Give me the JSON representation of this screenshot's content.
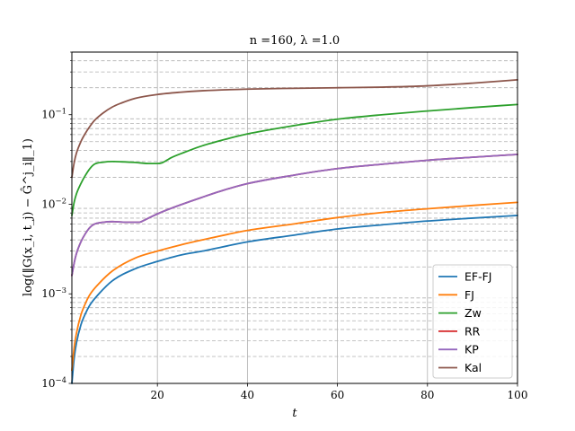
{
  "chart_data": {
    "type": "line",
    "title": "n =160, λ =1.0",
    "xlabel": "t",
    "ylabel": "log(‖G(x_i, t_j) − Ĝ^j_i‖_1)",
    "xlim": [
      1,
      100
    ],
    "ylim": [
      0.0001,
      0.5
    ],
    "yscale": "log",
    "xticks": [
      20,
      40,
      60,
      80,
      100
    ],
    "xtick_labels": [
      "20",
      "40",
      "60",
      "80",
      "100"
    ],
    "yticks": [
      0.0001,
      0.001,
      0.01,
      0.1
    ],
    "ytick_labels": [
      "10^-4",
      "10^-3",
      "10^-2",
      "10^-1"
    ],
    "grid": {
      "x": "major-solid",
      "y": "minor-dashed"
    },
    "legend_position": "lower-right",
    "series": [
      {
        "name": "EF-FJ",
        "color": "#1f77b4",
        "x": [
          1,
          1.5,
          2,
          3,
          4,
          5,
          7,
          10,
          15,
          20,
          25,
          30,
          40,
          50,
          60,
          70,
          80,
          90,
          100
        ],
        "y": [
          0.0001,
          0.00019,
          0.00028,
          0.00045,
          0.0006,
          0.00075,
          0.001,
          0.0014,
          0.0019,
          0.0023,
          0.0027,
          0.003,
          0.0038,
          0.0045,
          0.0053,
          0.0059,
          0.0065,
          0.007,
          0.0075
        ]
      },
      {
        "name": "FJ",
        "color": "#ff7f0e",
        "x": [
          1,
          1.5,
          2,
          3,
          4,
          5,
          7,
          10,
          15,
          20,
          25,
          30,
          40,
          50,
          60,
          70,
          80,
          90,
          100
        ],
        "y": [
          0.00014,
          0.00025,
          0.00036,
          0.00058,
          0.00078,
          0.00098,
          0.0013,
          0.0018,
          0.0025,
          0.003,
          0.0035,
          0.004,
          0.0051,
          0.006,
          0.0071,
          0.0081,
          0.0089,
          0.0097,
          0.0105
        ]
      },
      {
        "name": "Zw",
        "color": "#2ca02c",
        "x": [
          1,
          1.5,
          2,
          3,
          4,
          5,
          6,
          8,
          10,
          12,
          15,
          18,
          20,
          21,
          23,
          26,
          30,
          35,
          40,
          50,
          60,
          70,
          80,
          90,
          100
        ],
        "y": [
          0.0075,
          0.0105,
          0.013,
          0.017,
          0.021,
          0.025,
          0.028,
          0.0295,
          0.03,
          0.0298,
          0.0293,
          0.0285,
          0.0285,
          0.029,
          0.033,
          0.038,
          0.045,
          0.053,
          0.061,
          0.075,
          0.089,
          0.1,
          0.11,
          0.12,
          0.13
        ]
      },
      {
        "name": "RR",
        "color": "#d62728",
        "x": [
          1,
          1.5,
          2,
          3,
          4,
          5,
          6,
          8,
          10,
          13,
          16,
          17,
          18,
          20,
          22,
          25,
          30,
          35,
          40,
          50,
          60,
          70,
          80,
          90,
          100
        ],
        "y": [
          0.0016,
          0.0022,
          0.0028,
          0.0038,
          0.0047,
          0.0055,
          0.006,
          0.0063,
          0.0064,
          0.0063,
          0.0063,
          0.0066,
          0.007,
          0.0078,
          0.0086,
          0.0098,
          0.012,
          0.0145,
          0.017,
          0.021,
          0.025,
          0.028,
          0.031,
          0.0335,
          0.036
        ]
      },
      {
        "name": "KP",
        "color": "#9467bd",
        "x": [
          1,
          1.5,
          2,
          3,
          4,
          5,
          6,
          8,
          10,
          13,
          16,
          17,
          18,
          20,
          22,
          25,
          30,
          35,
          40,
          50,
          60,
          70,
          80,
          90,
          100
        ],
        "y": [
          0.0016,
          0.0022,
          0.0028,
          0.0038,
          0.0047,
          0.0055,
          0.006,
          0.0063,
          0.0064,
          0.0063,
          0.0063,
          0.0066,
          0.007,
          0.0078,
          0.0086,
          0.0098,
          0.012,
          0.0145,
          0.017,
          0.021,
          0.025,
          0.028,
          0.031,
          0.0335,
          0.036
        ]
      },
      {
        "name": "Kal",
        "color": "#8c564b",
        "x": [
          1,
          1.5,
          2,
          3,
          4,
          5,
          6,
          8,
          10,
          12,
          15,
          20,
          25,
          30,
          40,
          50,
          60,
          70,
          80,
          90,
          100
        ],
        "y": [
          0.02,
          0.029,
          0.037,
          0.05,
          0.062,
          0.074,
          0.086,
          0.105,
          0.122,
          0.135,
          0.152,
          0.168,
          0.178,
          0.185,
          0.193,
          0.197,
          0.2,
          0.203,
          0.21,
          0.225,
          0.245
        ]
      }
    ]
  }
}
